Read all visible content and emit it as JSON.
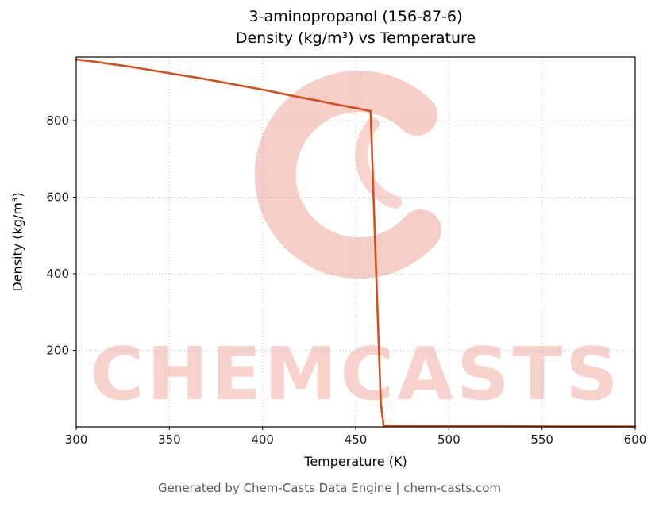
{
  "title": {
    "line1": "3-aminopropanol (156-87-6)",
    "line2": "Density (kg/m³) vs Temperature"
  },
  "footer": "Generated by Chem-Casts Data Engine | chem-casts.com",
  "watermark": {
    "text": "CHEMCASTS"
  },
  "colors": {
    "line": "#d2501e",
    "watermark": "#e14b37",
    "grid": "#b8b8b8",
    "axis": "#000000",
    "tick_label": "#1a1a1a",
    "footer": "#5a5a5a"
  },
  "chart_data": {
    "type": "line",
    "title": "3-aminopropanol (156-87-6) — Density (kg/m³) vs Temperature",
    "xlabel": "Temperature (K)",
    "ylabel": "Density (kg/m³)",
    "xlim": [
      300,
      600
    ],
    "ylim": [
      0,
      966
    ],
    "x_ticks": [
      300,
      350,
      400,
      450,
      500,
      550,
      600
    ],
    "y_ticks": [
      200,
      400,
      600,
      800
    ],
    "grid": true,
    "legend": false,
    "series": [
      {
        "name": "density",
        "x": [
          300,
          310,
          320,
          330,
          340,
          350,
          360,
          370,
          380,
          390,
          400,
          410,
          420,
          430,
          440,
          450,
          458,
          461,
          463.5,
          465,
          480,
          500,
          520,
          540,
          560,
          580,
          600
        ],
        "y": [
          960,
          954,
          947,
          940,
          932,
          924,
          916,
          908,
          899,
          890,
          881,
          871,
          861,
          852,
          842,
          833,
          825,
          400,
          60,
          3,
          2,
          2,
          2,
          1.5,
          1,
          1,
          1
        ]
      }
    ]
  }
}
